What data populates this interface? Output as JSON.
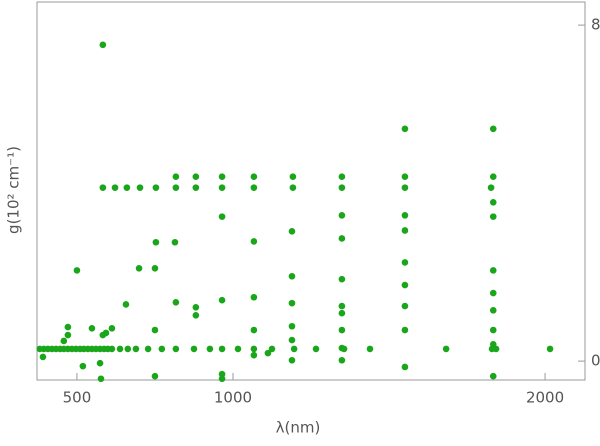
{
  "chart_data": {
    "type": "scatter",
    "x_label": "λ(nm)",
    "y_label": "g(10² cm⁻¹)",
    "xlim": [
      372,
      2128
    ],
    "ylim": [
      -0.45,
      8.55
    ],
    "xticks": [
      500,
      1000,
      2000
    ],
    "yticks": [
      0,
      8
    ],
    "color": "#1aa61a",
    "x": [
      381,
      394,
      407,
      420,
      433,
      446,
      458,
      471,
      484,
      497,
      510,
      522,
      535,
      548,
      561,
      574,
      587,
      599,
      612,
      638,
      663,
      689,
      728,
      772,
      817,
      875,
      926,
      965,
      1016,
      1067,
      1125,
      1196,
      1266,
      1356,
      1439,
      1683,
      1830,
      1843,
      2016,
      583,
      622,
      660,
      702,
      753,
      817,
      881,
      965,
      1067,
      1192,
      1349,
      1551,
      1827,
      817,
      881,
      965,
      1067,
      1192,
      1349,
      1551,
      1834,
      583,
      1551,
      1834,
      500,
      699,
      750,
      814,
      753,
      965,
      1067,
      1189,
      1349,
      1349,
      1551,
      1551,
      1551,
      1551,
      1551,
      1551,
      1551,
      1834,
      1834,
      1834,
      1834,
      1834,
      1834,
      1834,
      1834,
      1349,
      1349,
      1349,
      1349,
      1349,
      1349,
      1189,
      1189,
      1189,
      1189,
      1189,
      1067,
      1067,
      1067,
      881,
      881,
      965,
      965,
      965,
      817,
      750,
      750,
      657,
      583,
      577,
      548,
      612,
      593,
      471,
      471,
      458,
      391,
      519,
      574,
      1112
    ],
    "y": [
      0.29,
      0.29,
      0.29,
      0.29,
      0.29,
      0.29,
      0.29,
      0.29,
      0.29,
      0.29,
      0.29,
      0.29,
      0.29,
      0.29,
      0.29,
      0.29,
      0.29,
      0.29,
      0.29,
      0.29,
      0.29,
      0.29,
      0.29,
      0.29,
      0.29,
      0.29,
      0.29,
      0.29,
      0.29,
      0.29,
      0.29,
      0.29,
      0.29,
      0.29,
      0.29,
      0.29,
      0.29,
      0.29,
      0.29,
      4.13,
      4.13,
      4.13,
      4.13,
      4.13,
      4.13,
      4.13,
      4.13,
      4.13,
      4.13,
      4.13,
      4.13,
      4.13,
      4.39,
      4.39,
      4.39,
      4.39,
      4.39,
      4.39,
      4.39,
      4.39,
      7.53,
      5.53,
      5.53,
      2.16,
      2.21,
      2.21,
      2.83,
      2.83,
      3.44,
      2.85,
      3.09,
      3.47,
      2.92,
      3.47,
      3.11,
      2.35,
      1.81,
      1.31,
      0.74,
      -0.14,
      3.78,
      3.44,
      2.16,
      1.62,
      1.21,
      0.74,
      0.4,
      -0.36,
      1.95,
      1.31,
      1.14,
      0.74,
      0.31,
      0.02,
      2.02,
      1.38,
      0.83,
      0.5,
      0.02,
      1.52,
      0.74,
      0.14,
      1.28,
      1.09,
      1.45,
      -0.31,
      -0.42,
      1.4,
      0.74,
      -0.36,
      1.35,
      0.62,
      -0.42,
      0.78,
      0.78,
      0.67,
      0.81,
      0.62,
      0.48,
      0.1,
      -0.12,
      -0.05,
      0.19
    ]
  }
}
